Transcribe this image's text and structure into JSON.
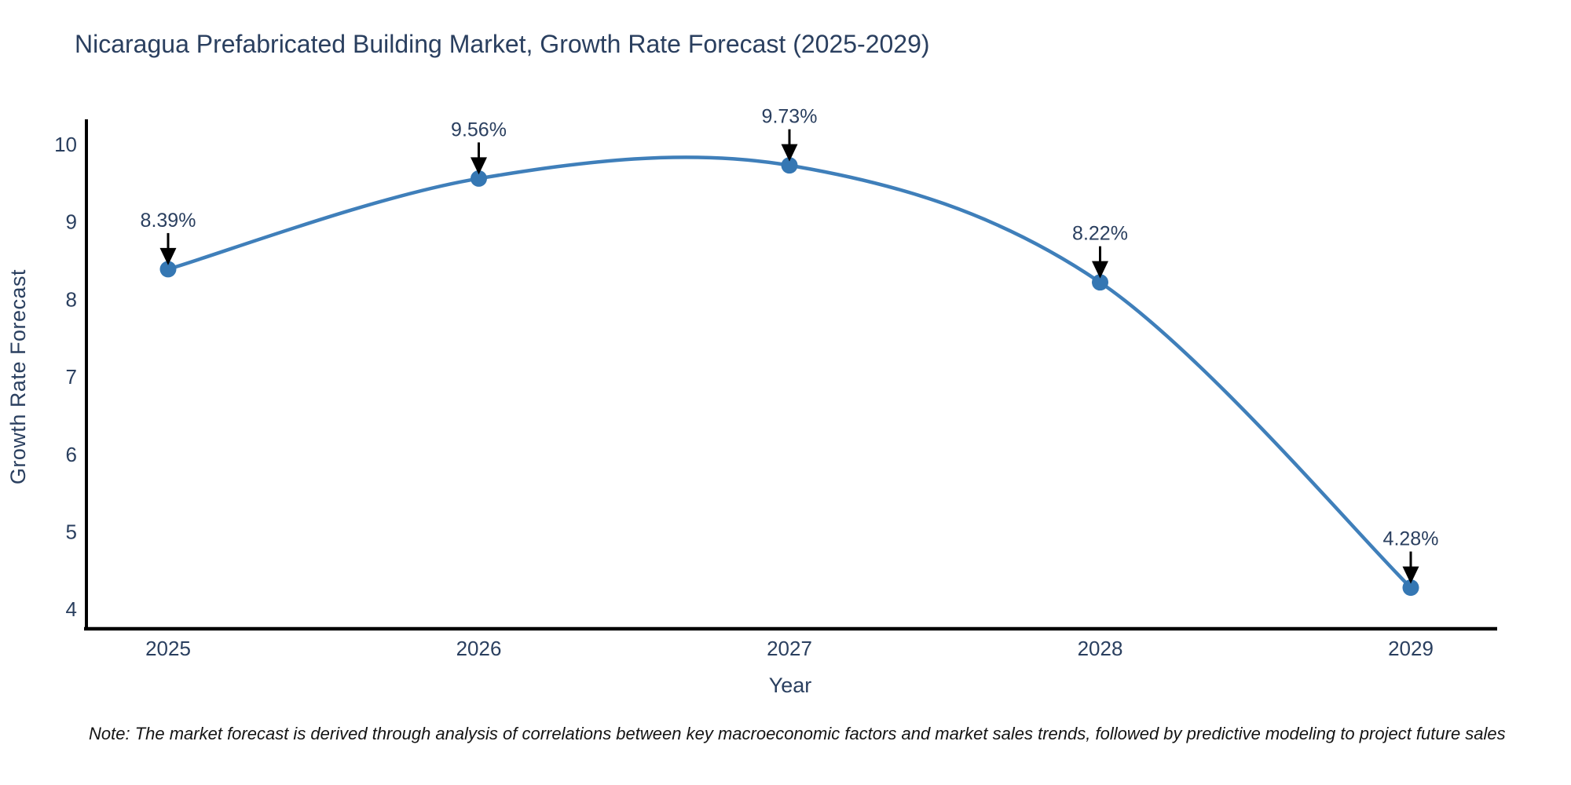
{
  "chart_data": {
    "type": "line",
    "line_shape": "spline",
    "title": "Nicaragua Prefabricated Building Market, Growth Rate Forecast (2025-2029)",
    "xlabel": "Year",
    "ylabel": "Growth Rate Forecast",
    "categories": [
      "2025",
      "2026",
      "2027",
      "2028",
      "2029"
    ],
    "series": [
      {
        "name": "Growth Rate Forecast",
        "values": [
          8.39,
          9.56,
          9.73,
          8.22,
          4.28
        ],
        "point_labels": [
          "8.39%",
          "9.56%",
          "9.73%",
          "8.22%",
          "4.28%"
        ]
      }
    ],
    "yticks": [
      4,
      5,
      6,
      7,
      8,
      9,
      10
    ],
    "ylim": [
      3.76,
      10.24
    ],
    "grid": false,
    "legend": false,
    "annotations_style": "value label above each point with downward black arrow",
    "colors": {
      "line": "#3f7fba",
      "marker": "#3577b3",
      "axis": "#000000",
      "tick_label": "#2a3f5f",
      "annotation_text": "#2a3f5f",
      "arrow": "#000000",
      "background": "#ffffff"
    },
    "note": "Note: The market forecast is derived through analysis of correlations between key macroeconomic factors and market sales trends, followed by predictive modeling to project future sales"
  }
}
